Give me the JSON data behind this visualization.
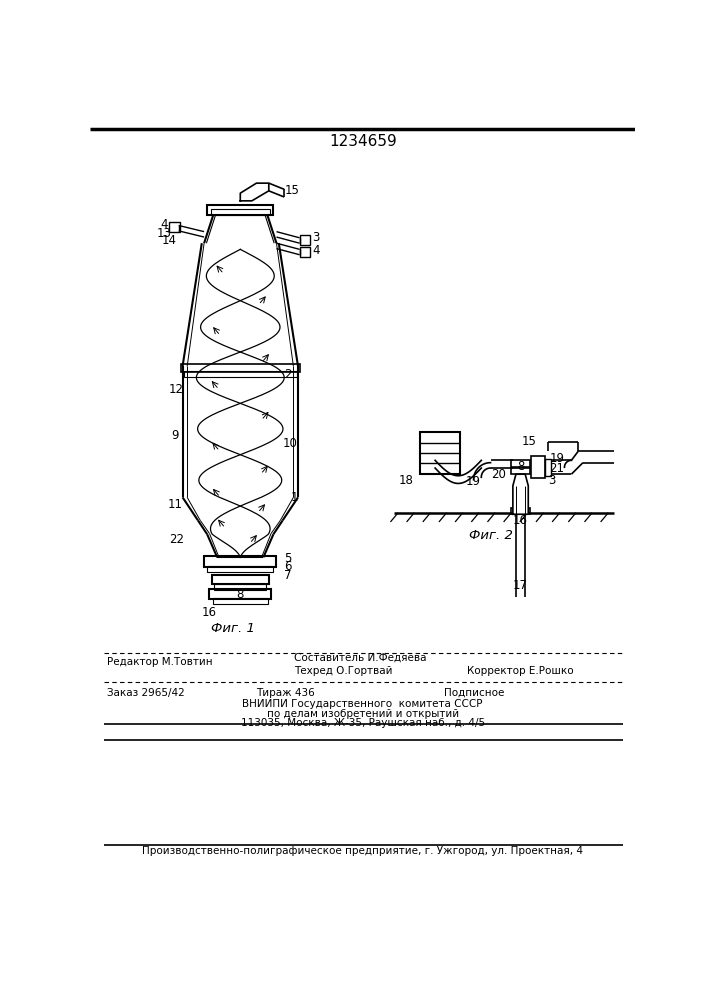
{
  "title": "1234659",
  "fig1_label": "Фиг. 1",
  "fig2_label": "Фиг. 2",
  "last_line": "Производственно-полиграфическое предприятие, г. Ужгород, ул. Проектная, 4",
  "bg_color": "#ffffff"
}
